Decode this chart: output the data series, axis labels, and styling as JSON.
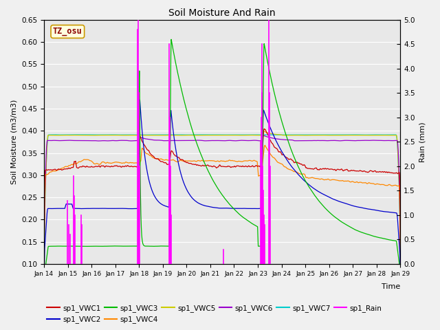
{
  "title": "Soil Moisture And Rain",
  "xlabel": "Time",
  "ylabel_left": "Soil Moisture (m3/m3)",
  "ylabel_right": "Rain (mm)",
  "station_label": "TZ_osu",
  "xlim_days": [
    0,
    15
  ],
  "ylim_left": [
    0.1,
    0.65
  ],
  "ylim_right": [
    0.0,
    5.0
  ],
  "yticks_left": [
    0.1,
    0.15,
    0.2,
    0.25,
    0.3,
    0.35,
    0.4,
    0.45,
    0.5,
    0.55,
    0.6,
    0.65
  ],
  "yticks_right": [
    0.0,
    0.5,
    1.0,
    1.5,
    2.0,
    2.5,
    3.0,
    3.5,
    4.0,
    4.5,
    5.0
  ],
  "xtick_labels": [
    "Jan 14",
    "Jan 15",
    "Jan 16",
    "Jan 17",
    "Jan 18",
    "Jan 19",
    "Jan 20",
    "Jan 21",
    "Jan 22",
    "Jan 23",
    "Jan 24",
    "Jan 25",
    "Jan 26",
    "Jan 27",
    "Jan 28",
    "Jan 29"
  ],
  "colors": {
    "VWC1": "#cc0000",
    "VWC2": "#0000cc",
    "VWC3": "#00bb00",
    "VWC4": "#ff8800",
    "VWC5": "#cccc00",
    "VWC6": "#9900cc",
    "VWC7": "#00cccc",
    "Rain": "#ff00ff"
  },
  "background_color": "#e8e8e8",
  "grid_color": "#ffffff",
  "fig_background": "#f0f0f0"
}
